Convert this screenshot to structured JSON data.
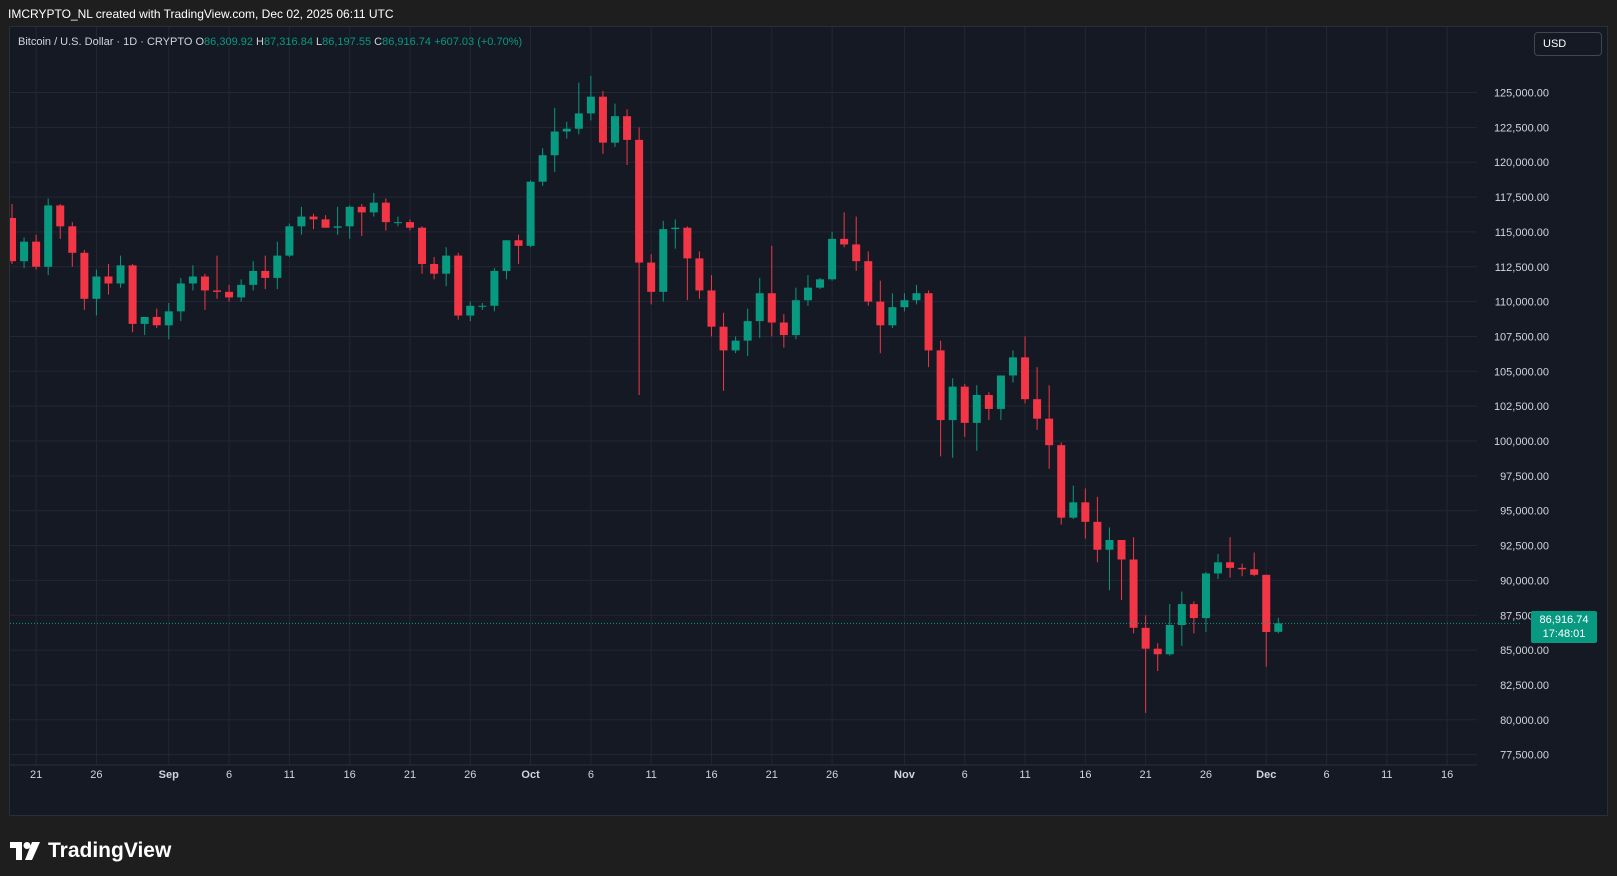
{
  "header": {
    "attribution": "IMCRYPTO_NL created with TradingView.com, Dec 02, 2025 06:11 UTC"
  },
  "legend": {
    "symbol": "Bitcoin / U.S. Dollar · 1D · CRYPTO",
    "open_label": "O",
    "open": "86,309.92",
    "high_label": "H",
    "high": "87,316.84",
    "low_label": "L",
    "low": "86,197.55",
    "close_label": "C",
    "close": "86,916.74",
    "change": "+607.03 (+0.70%)"
  },
  "currency": "USD",
  "last_price": {
    "value": "86,916.74",
    "countdown": "17:48:01"
  },
  "footer": {
    "brand": "TradingView",
    "logo_icon": "tradingview-logo-icon"
  },
  "colors": {
    "up": "#089981",
    "down": "#f23645",
    "background": "#151924",
    "grid": "#232734",
    "axis_text": "#d1d4dc"
  },
  "chart_data": {
    "type": "candlestick",
    "title": "Bitcoin / U.S. Dollar · 1D · CRYPTO",
    "ylabel": "USD",
    "ylim": [
      75000,
      127500
    ],
    "grid": true,
    "y_ticks": [
      "77,500.00",
      "80,000.00",
      "82,500.00",
      "85,000.00",
      "87,500.00",
      "90,000.00",
      "92,500.00",
      "95,000.00",
      "97,500.00",
      "100,000.00",
      "102,500.00",
      "105,000.00",
      "107,500.00",
      "110,000.00",
      "112,500.00",
      "115,000.00",
      "117,500.00",
      "120,000.00",
      "122,500.00",
      "125,000.00"
    ],
    "x_ticks": [
      {
        "date": "Aug 21",
        "label": "21"
      },
      {
        "date": "Aug 26",
        "label": "26"
      },
      {
        "date": "Sep 1",
        "label": "Sep"
      },
      {
        "date": "Sep 6",
        "label": "6"
      },
      {
        "date": "Sep 11",
        "label": "11"
      },
      {
        "date": "Sep 16",
        "label": "16"
      },
      {
        "date": "Sep 21",
        "label": "21"
      },
      {
        "date": "Sep 26",
        "label": "26"
      },
      {
        "date": "Oct 1",
        "label": "Oct"
      },
      {
        "date": "Oct 6",
        "label": "6"
      },
      {
        "date": "Oct 11",
        "label": "11"
      },
      {
        "date": "Oct 16",
        "label": "16"
      },
      {
        "date": "Oct 21",
        "label": "21"
      },
      {
        "date": "Oct 26",
        "label": "26"
      },
      {
        "date": "Nov 1",
        "label": "Nov"
      },
      {
        "date": "Nov 6",
        "label": "6"
      },
      {
        "date": "Nov 11",
        "label": "11"
      },
      {
        "date": "Nov 16",
        "label": "16"
      },
      {
        "date": "Nov 21",
        "label": "21"
      },
      {
        "date": "Nov 26",
        "label": "26"
      },
      {
        "date": "Dec 1",
        "label": "Dec"
      },
      {
        "date": "Dec 6",
        "label": "6"
      },
      {
        "date": "Dec 11",
        "label": "11"
      },
      {
        "date": "Dec 16",
        "label": "16"
      }
    ],
    "x_range": [
      "Aug 19",
      "Dec 20"
    ],
    "candles": [
      {
        "date": "Aug 19",
        "o": 116000,
        "h": 117000,
        "l": 112700,
        "c": 112900
      },
      {
        "date": "Aug 20",
        "o": 112900,
        "h": 114600,
        "l": 112400,
        "c": 114300
      },
      {
        "date": "Aug 21",
        "o": 114300,
        "h": 114800,
        "l": 112300,
        "c": 112500
      },
      {
        "date": "Aug 22",
        "o": 112500,
        "h": 117400,
        "l": 111900,
        "c": 116900
      },
      {
        "date": "Aug 23",
        "o": 116900,
        "h": 117000,
        "l": 114500,
        "c": 115400
      },
      {
        "date": "Aug 24",
        "o": 115400,
        "h": 115700,
        "l": 112500,
        "c": 113500
      },
      {
        "date": "Aug 25",
        "o": 113500,
        "h": 113700,
        "l": 109400,
        "c": 110200
      },
      {
        "date": "Aug 26",
        "o": 110200,
        "h": 112300,
        "l": 109000,
        "c": 111800
      },
      {
        "date": "Aug 27",
        "o": 111800,
        "h": 112700,
        "l": 110500,
        "c": 111300
      },
      {
        "date": "Aug 28",
        "o": 111300,
        "h": 113300,
        "l": 111000,
        "c": 112600
      },
      {
        "date": "Aug 29",
        "o": 112600,
        "h": 112700,
        "l": 107800,
        "c": 108400
      },
      {
        "date": "Aug 30",
        "o": 108400,
        "h": 108900,
        "l": 107600,
        "c": 108900
      },
      {
        "date": "Aug 31",
        "o": 108900,
        "h": 109500,
        "l": 108100,
        "c": 108300
      },
      {
        "date": "Sep 1",
        "o": 108300,
        "h": 109900,
        "l": 107300,
        "c": 109300
      },
      {
        "date": "Sep 2",
        "o": 109300,
        "h": 111700,
        "l": 108600,
        "c": 111300
      },
      {
        "date": "Sep 3",
        "o": 111300,
        "h": 112600,
        "l": 110800,
        "c": 111800
      },
      {
        "date": "Sep 4",
        "o": 111800,
        "h": 112000,
        "l": 109400,
        "c": 110800
      },
      {
        "date": "Sep 5",
        "o": 110800,
        "h": 113300,
        "l": 110200,
        "c": 110700
      },
      {
        "date": "Sep 6",
        "o": 110700,
        "h": 111200,
        "l": 110000,
        "c": 110300
      },
      {
        "date": "Sep 7",
        "o": 110300,
        "h": 111600,
        "l": 110000,
        "c": 111200
      },
      {
        "date": "Sep 8",
        "o": 111200,
        "h": 112900,
        "l": 110800,
        "c": 112200
      },
      {
        "date": "Sep 9",
        "o": 112200,
        "h": 113300,
        "l": 110900,
        "c": 111700
      },
      {
        "date": "Sep 10",
        "o": 111700,
        "h": 114300,
        "l": 110900,
        "c": 113300
      },
      {
        "date": "Sep 11",
        "o": 113300,
        "h": 115600,
        "l": 113200,
        "c": 115400
      },
      {
        "date": "Sep 12",
        "o": 115400,
        "h": 116800,
        "l": 114800,
        "c": 116100
      },
      {
        "date": "Sep 13",
        "o": 116100,
        "h": 116300,
        "l": 115200,
        "c": 115900
      },
      {
        "date": "Sep 14",
        "o": 115900,
        "h": 116200,
        "l": 115300,
        "c": 115300
      },
      {
        "date": "Sep 15",
        "o": 115300,
        "h": 116800,
        "l": 114800,
        "c": 115400
      },
      {
        "date": "Sep 16",
        "o": 115400,
        "h": 116900,
        "l": 114500,
        "c": 116800
      },
      {
        "date": "Sep 17",
        "o": 116800,
        "h": 117000,
        "l": 114700,
        "c": 116400
      },
      {
        "date": "Sep 18",
        "o": 116400,
        "h": 117800,
        "l": 116100,
        "c": 117100
      },
      {
        "date": "Sep 19",
        "o": 117100,
        "h": 117400,
        "l": 115100,
        "c": 115700
      },
      {
        "date": "Sep 20",
        "o": 115700,
        "h": 116100,
        "l": 115400,
        "c": 115700
      },
      {
        "date": "Sep 21",
        "o": 115700,
        "h": 115900,
        "l": 115100,
        "c": 115300
      },
      {
        "date": "Sep 22",
        "o": 115300,
        "h": 115400,
        "l": 112000,
        "c": 112700
      },
      {
        "date": "Sep 23",
        "o": 112700,
        "h": 113200,
        "l": 111600,
        "c": 112000
      },
      {
        "date": "Sep 24",
        "o": 112000,
        "h": 113900,
        "l": 111100,
        "c": 113300
      },
      {
        "date": "Sep 25",
        "o": 113300,
        "h": 113500,
        "l": 108700,
        "c": 109000
      },
      {
        "date": "Sep 26",
        "o": 109000,
        "h": 110000,
        "l": 108600,
        "c": 109700
      },
      {
        "date": "Sep 27",
        "o": 109700,
        "h": 109900,
        "l": 109400,
        "c": 109700
      },
      {
        "date": "Sep 28",
        "o": 109700,
        "h": 112400,
        "l": 109300,
        "c": 112200
      },
      {
        "date": "Sep 29",
        "o": 112200,
        "h": 114400,
        "l": 111600,
        "c": 114400
      },
      {
        "date": "Sep 30",
        "o": 114400,
        "h": 114800,
        "l": 112700,
        "c": 114000
      },
      {
        "date": "Oct 1",
        "o": 114000,
        "h": 118700,
        "l": 113900,
        "c": 118600
      },
      {
        "date": "Oct 2",
        "o": 118600,
        "h": 121000,
        "l": 118300,
        "c": 120500
      },
      {
        "date": "Oct 3",
        "o": 120500,
        "h": 123900,
        "l": 119300,
        "c": 122200
      },
      {
        "date": "Oct 4",
        "o": 122200,
        "h": 122900,
        "l": 121700,
        "c": 122400
      },
      {
        "date": "Oct 5",
        "o": 122400,
        "h": 125700,
        "l": 122000,
        "c": 123500
      },
      {
        "date": "Oct 6",
        "o": 123500,
        "h": 126200,
        "l": 123000,
        "c": 124700
      },
      {
        "date": "Oct 7",
        "o": 124700,
        "h": 125100,
        "l": 120600,
        "c": 121400
      },
      {
        "date": "Oct 8",
        "o": 121400,
        "h": 124200,
        "l": 121100,
        "c": 123300
      },
      {
        "date": "Oct 9",
        "o": 123300,
        "h": 123800,
        "l": 119800,
        "c": 121600
      },
      {
        "date": "Oct 10",
        "o": 121600,
        "h": 122500,
        "l": 103300,
        "c": 112800
      },
      {
        "date": "Oct 11",
        "o": 112800,
        "h": 113400,
        "l": 109800,
        "c": 110700
      },
      {
        "date": "Oct 12",
        "o": 110700,
        "h": 115800,
        "l": 110000,
        "c": 115200
      },
      {
        "date": "Oct 13",
        "o": 115200,
        "h": 115900,
        "l": 113800,
        "c": 115300
      },
      {
        "date": "Oct 14",
        "o": 115300,
        "h": 115400,
        "l": 110100,
        "c": 113100
      },
      {
        "date": "Oct 15",
        "o": 113100,
        "h": 113600,
        "l": 110200,
        "c": 110800
      },
      {
        "date": "Oct 16",
        "o": 110800,
        "h": 111900,
        "l": 107500,
        "c": 108200
      },
      {
        "date": "Oct 17",
        "o": 108200,
        "h": 109200,
        "l": 103600,
        "c": 106500
      },
      {
        "date": "Oct 18",
        "o": 106500,
        "h": 107500,
        "l": 106300,
        "c": 107200
      },
      {
        "date": "Oct 19",
        "o": 107200,
        "h": 109500,
        "l": 106100,
        "c": 108600
      },
      {
        "date": "Oct 20",
        "o": 108600,
        "h": 111700,
        "l": 107400,
        "c": 110600
      },
      {
        "date": "Oct 21",
        "o": 110600,
        "h": 114000,
        "l": 107500,
        "c": 108500
      },
      {
        "date": "Oct 22",
        "o": 108500,
        "h": 109100,
        "l": 106700,
        "c": 107600
      },
      {
        "date": "Oct 23",
        "o": 107600,
        "h": 111000,
        "l": 107300,
        "c": 110100
      },
      {
        "date": "Oct 24",
        "o": 110100,
        "h": 111900,
        "l": 109700,
        "c": 111000
      },
      {
        "date": "Oct 25",
        "o": 111000,
        "h": 111700,
        "l": 110900,
        "c": 111600
      },
      {
        "date": "Oct 26",
        "o": 111600,
        "h": 115000,
        "l": 111500,
        "c": 114500
      },
      {
        "date": "Oct 27",
        "o": 114500,
        "h": 116400,
        "l": 113900,
        "c": 114100
      },
      {
        "date": "Oct 28",
        "o": 114100,
        "h": 116100,
        "l": 112200,
        "c": 112900
      },
      {
        "date": "Oct 29",
        "o": 112900,
        "h": 113600,
        "l": 109700,
        "c": 110000
      },
      {
        "date": "Oct 30",
        "o": 110000,
        "h": 111500,
        "l": 106300,
        "c": 108300
      },
      {
        "date": "Oct 31",
        "o": 108300,
        "h": 110600,
        "l": 108100,
        "c": 109600
      },
      {
        "date": "Nov 1",
        "o": 109600,
        "h": 110600,
        "l": 109300,
        "c": 110100
      },
      {
        "date": "Nov 2",
        "o": 110100,
        "h": 111200,
        "l": 109800,
        "c": 110600
      },
      {
        "date": "Nov 3",
        "o": 110600,
        "h": 110800,
        "l": 105300,
        "c": 106500
      },
      {
        "date": "Nov 4",
        "o": 106500,
        "h": 107200,
        "l": 98900,
        "c": 101500
      },
      {
        "date": "Nov 5",
        "o": 101500,
        "h": 104500,
        "l": 98800,
        "c": 103900
      },
      {
        "date": "Nov 6",
        "o": 103900,
        "h": 104100,
        "l": 100300,
        "c": 101300
      },
      {
        "date": "Nov 7",
        "o": 101300,
        "h": 104000,
        "l": 99300,
        "c": 103300
      },
      {
        "date": "Nov 8",
        "o": 103300,
        "h": 103500,
        "l": 101500,
        "c": 102300
      },
      {
        "date": "Nov 9",
        "o": 102300,
        "h": 104700,
        "l": 101500,
        "c": 104700
      },
      {
        "date": "Nov 10",
        "o": 104700,
        "h": 106500,
        "l": 104200,
        "c": 106000
      },
      {
        "date": "Nov 11",
        "o": 106000,
        "h": 107500,
        "l": 102700,
        "c": 103000
      },
      {
        "date": "Nov 12",
        "o": 103000,
        "h": 105300,
        "l": 100800,
        "c": 101600
      },
      {
        "date": "Nov 13",
        "o": 101600,
        "h": 104000,
        "l": 98000,
        "c": 99700
      },
      {
        "date": "Nov 14",
        "o": 99700,
        "h": 99900,
        "l": 94000,
        "c": 94500
      },
      {
        "date": "Nov 15",
        "o": 94500,
        "h": 96800,
        "l": 94400,
        "c": 95600
      },
      {
        "date": "Nov 16",
        "o": 95600,
        "h": 96600,
        "l": 93000,
        "c": 94200
      },
      {
        "date": "Nov 17",
        "o": 94200,
        "h": 96000,
        "l": 91300,
        "c": 92200
      },
      {
        "date": "Nov 18",
        "o": 92200,
        "h": 93800,
        "l": 89300,
        "c": 92900
      },
      {
        "date": "Nov 19",
        "o": 92900,
        "h": 92900,
        "l": 88600,
        "c": 91500
      },
      {
        "date": "Nov 20",
        "o": 91500,
        "h": 93100,
        "l": 86200,
        "c": 86600
      },
      {
        "date": "Nov 21",
        "o": 86600,
        "h": 87500,
        "l": 80500,
        "c": 85100
      },
      {
        "date": "Nov 22",
        "o": 85100,
        "h": 85500,
        "l": 83500,
        "c": 84700
      },
      {
        "date": "Nov 23",
        "o": 84700,
        "h": 88300,
        "l": 84600,
        "c": 86800
      },
      {
        "date": "Nov 24",
        "o": 86800,
        "h": 89200,
        "l": 85300,
        "c": 88300
      },
      {
        "date": "Nov 25",
        "o": 88300,
        "h": 88500,
        "l": 86200,
        "c": 87300
      },
      {
        "date": "Nov 26",
        "o": 87300,
        "h": 90600,
        "l": 86300,
        "c": 90500
      },
      {
        "date": "Nov 27",
        "o": 90500,
        "h": 91900,
        "l": 90100,
        "c": 91300
      },
      {
        "date": "Nov 28",
        "o": 91300,
        "h": 93100,
        "l": 90200,
        "c": 90900
      },
      {
        "date": "Nov 29",
        "o": 90900,
        "h": 91200,
        "l": 90300,
        "c": 90800
      },
      {
        "date": "Nov 30",
        "o": 90800,
        "h": 92000,
        "l": 90300,
        "c": 90400
      },
      {
        "date": "Dec 1",
        "o": 90400,
        "h": 90400,
        "l": 83800,
        "c": 86300
      },
      {
        "date": "Dec 2",
        "o": 86309.92,
        "h": 87316.84,
        "l": 86197.55,
        "c": 86916.74
      }
    ]
  }
}
